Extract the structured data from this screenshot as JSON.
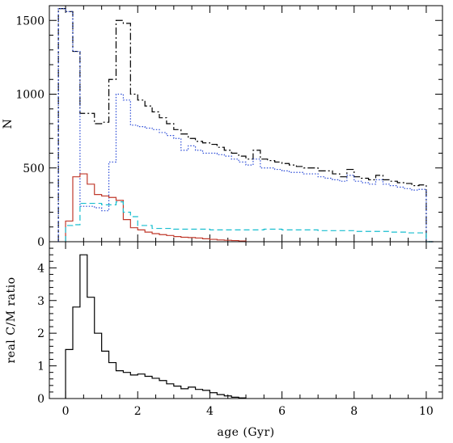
{
  "chart_data": [
    {
      "type": "line",
      "step": true,
      "xlabel": "",
      "ylabel": "N",
      "xlim": [
        -0.45,
        10.45
      ],
      "ylim": [
        0,
        1600
      ],
      "x_ticks": [
        0,
        2,
        4,
        6,
        8,
        10
      ],
      "y_ticks": [
        0,
        500,
        1000,
        1500
      ],
      "y_tick_labels": [
        "0",
        "500",
        "1000",
        "1500"
      ],
      "series": [
        {
          "style": "dash-dot",
          "color": "#000000",
          "edges": [
            -0.2,
            0.0,
            0.2,
            0.4,
            0.8,
            1.0,
            1.2,
            1.4,
            1.6,
            1.8,
            2.0,
            2.2,
            2.4,
            2.6,
            2.8,
            3.0,
            3.2,
            3.4,
            3.6,
            3.8,
            4.0,
            4.2,
            4.4,
            4.6,
            4.8,
            5.0,
            5.2,
            5.4,
            5.6,
            5.8,
            6.0,
            6.2,
            6.4,
            6.6,
            6.8,
            7.0,
            7.2,
            7.4,
            7.6,
            7.8,
            8.0,
            8.2,
            8.4,
            8.6,
            8.8,
            9.0,
            9.2,
            9.4,
            9.6,
            9.8,
            10.0,
            10.2
          ],
          "values": [
            1580,
            1560,
            1290,
            870,
            800,
            810,
            1100,
            1500,
            1480,
            1000,
            960,
            920,
            880,
            840,
            800,
            760,
            730,
            700,
            680,
            670,
            660,
            640,
            620,
            600,
            580,
            560,
            620,
            560,
            550,
            540,
            530,
            520,
            510,
            500,
            500,
            480,
            480,
            460,
            440,
            490,
            440,
            430,
            420,
            450,
            420,
            410,
            400,
            395,
            380,
            385,
            0
          ]
        },
        {
          "style": "dotted",
          "color": "#2a4bd7",
          "edges": [
            -0.2,
            0.0,
            0.2,
            0.4,
            0.8,
            1.0,
            1.2,
            1.4,
            1.6,
            1.8,
            2.0,
            2.2,
            2.4,
            2.6,
            2.8,
            3.0,
            3.2,
            3.4,
            3.6,
            3.8,
            4.0,
            4.2,
            4.4,
            4.6,
            4.8,
            5.0,
            5.2,
            5.4,
            5.6,
            5.8,
            6.0,
            6.2,
            6.4,
            6.6,
            6.8,
            7.0,
            7.2,
            7.4,
            7.6,
            7.8,
            8.0,
            8.2,
            8.4,
            8.6,
            8.8,
            9.0,
            9.2,
            9.4,
            9.6,
            9.8,
            10.0,
            10.2
          ],
          "values": [
            1580,
            1560,
            1290,
            240,
            230,
            210,
            540,
            1000,
            960,
            790,
            780,
            770,
            760,
            740,
            720,
            700,
            620,
            650,
            620,
            600,
            600,
            590,
            580,
            560,
            540,
            520,
            560,
            500,
            500,
            490,
            480,
            470,
            470,
            460,
            460,
            440,
            430,
            420,
            410,
            450,
            410,
            400,
            390,
            420,
            390,
            380,
            370,
            360,
            350,
            355,
            0
          ]
        },
        {
          "style": "solid",
          "color": "#c0392b",
          "edges": [
            0.0,
            0.2,
            0.4,
            0.6,
            0.8,
            1.0,
            1.2,
            1.4,
            1.6,
            1.8,
            2.0,
            2.2,
            2.4,
            2.6,
            2.8,
            3.0,
            3.2,
            3.4,
            3.6,
            3.8,
            4.0,
            4.2,
            4.4,
            4.6,
            4.8,
            5.0
          ],
          "values": [
            140,
            440,
            460,
            390,
            320,
            310,
            300,
            280,
            150,
            95,
            80,
            65,
            55,
            48,
            42,
            35,
            30,
            28,
            25,
            20,
            16,
            12,
            10,
            8,
            5
          ]
        },
        {
          "style": "dashed",
          "color": "#17becf",
          "edges": [
            0.0,
            0.2,
            0.4,
            0.8,
            1.0,
            1.2,
            1.4,
            1.6,
            1.8,
            2.0,
            2.4,
            3.0,
            4.0,
            5.0,
            5.5,
            6.0,
            7.0,
            8.0,
            9.0,
            9.5,
            10.0,
            10.2
          ],
          "values": [
            110,
            115,
            260,
            260,
            250,
            250,
            270,
            200,
            170,
            110,
            90,
            85,
            80,
            80,
            85,
            80,
            75,
            70,
            65,
            60,
            0
          ]
        }
      ]
    },
    {
      "type": "line",
      "step": true,
      "xlabel": "age (Gyr)",
      "ylabel": "real C/M ratio",
      "xlim": [
        -0.45,
        10.45
      ],
      "ylim": [
        0,
        4.8
      ],
      "x_ticks": [
        0,
        2,
        4,
        6,
        8,
        10
      ],
      "x_tick_labels": [
        "0",
        "2",
        "4",
        "6",
        "8",
        "10"
      ],
      "y_ticks": [
        0,
        1,
        2,
        3,
        4
      ],
      "y_tick_labels": [
        "0",
        "1",
        "2",
        "3",
        "4"
      ],
      "series": [
        {
          "style": "solid",
          "color": "#000000",
          "edges": [
            0.0,
            0.2,
            0.4,
            0.6,
            0.8,
            1.0,
            1.2,
            1.4,
            1.6,
            1.8,
            2.0,
            2.2,
            2.4,
            2.6,
            2.8,
            3.0,
            3.2,
            3.4,
            3.6,
            3.8,
            4.0,
            4.2,
            4.4,
            4.6,
            4.8,
            5.0
          ],
          "values": [
            1.5,
            2.8,
            4.4,
            3.1,
            2.0,
            1.45,
            1.1,
            0.85,
            0.8,
            0.72,
            0.75,
            0.68,
            0.62,
            0.55,
            0.45,
            0.38,
            0.3,
            0.35,
            0.28,
            0.25,
            0.18,
            0.12,
            0.08,
            0.04,
            0.02
          ]
        }
      ]
    }
  ]
}
